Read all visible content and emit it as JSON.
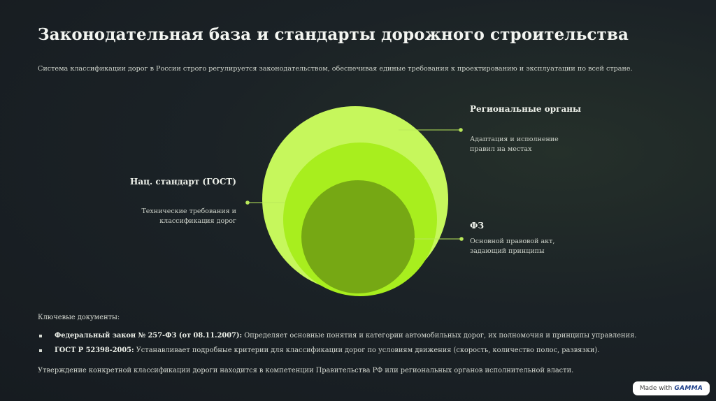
{
  "title": "Законодательная база и стандарты дорожного строительства",
  "subtitle": "Система классификации дорог в России строго регулируется законодательством, обеспечивая единые требования к проектированию и эксплуатации по всей стране.",
  "diagram": {
    "colors": {
      "outer": "#c6f75c",
      "middle": "#a8ee1e",
      "inner": "#76a814",
      "connector": "#b9e85a"
    },
    "labels": {
      "regional": {
        "title": "Региональные органы",
        "desc": "Адаптация и исполнение правил на местах"
      },
      "gost": {
        "title": "Нац. стандарт (ГОСТ)",
        "desc": "Технические требования и классификация дорог"
      },
      "fz": {
        "title": "ФЗ",
        "desc": "Основной правовой акт, задающий принципы"
      }
    }
  },
  "documents": {
    "heading": "Ключевые документы:",
    "items": [
      {
        "bold": "Федеральный закон № 257-ФЗ (от 08.11.2007):",
        "text": " Определяет основные понятия и категории автомобильных дорог, их полномочия и принципы управления."
      },
      {
        "bold": "ГОСТ Р 52398-2005:",
        "text": " Устанавливает подробные критерии для классификации дорог по условиям движения (скорость, количество полос, развязки)."
      }
    ]
  },
  "footer_note": "Утверждение конкретной классификации дороги находится в компетенции Правительства РФ или региональных органов исполнительной власти.",
  "badge": {
    "prefix": "Made with",
    "brand": "GAMMA"
  }
}
